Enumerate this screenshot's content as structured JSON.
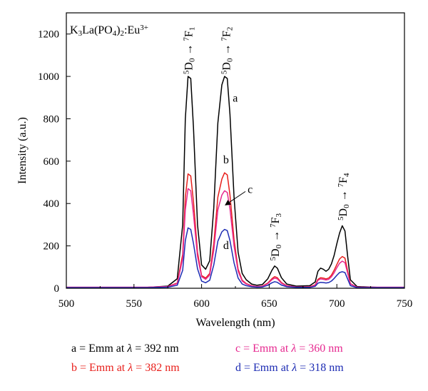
{
  "chart_data": {
    "type": "line",
    "title": "",
    "xlabel": "Wavelength (nm)",
    "ylabel": "Intensity (a.u.)",
    "xlim": [
      500,
      750
    ],
    "ylim": [
      0,
      1300
    ],
    "xticks": [
      500,
      550,
      600,
      650,
      700,
      750
    ],
    "yticks": [
      0,
      200,
      400,
      600,
      800,
      1000,
      1200
    ],
    "grid": false,
    "sample": {
      "base": "K",
      "sub1": "3",
      "mid1": "La(PO",
      "sub2": "4",
      "mid2": ")",
      "sub3": "2",
      "mid3": ":Eu",
      "sup": "3+"
    },
    "peak_labels": [
      {
        "id": "f1",
        "upper": "7",
        "term": "F",
        "sub": "1",
        "x": 590,
        "y": 1010
      },
      {
        "id": "f2",
        "upper": "7",
        "term": "F",
        "sub": "2",
        "x": 618,
        "y": 1010
      },
      {
        "id": "f3",
        "upper": "7",
        "term": "F",
        "sub": "3",
        "x": 654,
        "y": 130
      },
      {
        "id": "f4",
        "upper": "7",
        "term": "F",
        "sub": "4",
        "x": 704,
        "y": 320
      }
    ],
    "transition_prefix": {
      "sup": "5",
      "term": "D",
      "sub": "0",
      "arrow": "→"
    },
    "curve_labels": [
      {
        "text": "a",
        "x": 623,
        "y": 880
      },
      {
        "text": "b",
        "x": 616,
        "y": 590
      },
      {
        "text": "c",
        "x": 634,
        "y": 450
      },
      {
        "text": "d",
        "x": 616,
        "y": 185
      }
    ],
    "series": [
      {
        "name": "a",
        "color": "#000000",
        "x": [
          500,
          560,
          575,
          582,
          586,
          588,
          590,
          592,
          594,
          597,
          600,
          603,
          606,
          609,
          612,
          615,
          617,
          619,
          621,
          624,
          627,
          630,
          633,
          637,
          641,
          645,
          649,
          652,
          654,
          656,
          659,
          663,
          670,
          680,
          684,
          686,
          688,
          690,
          692,
          694,
          696,
          698,
          700,
          702,
          704,
          706,
          708,
          710,
          715,
          730,
          750
        ],
        "y": [
          3,
          4,
          10,
          45,
          300,
          800,
          1000,
          990,
          760,
          300,
          110,
          90,
          130,
          380,
          780,
          960,
          1000,
          990,
          820,
          430,
          170,
          70,
          40,
          20,
          14,
          18,
          45,
          85,
          105,
          95,
          50,
          20,
          10,
          12,
          30,
          80,
          95,
          90,
          80,
          90,
          115,
          155,
          210,
          260,
          295,
          270,
          150,
          40,
          8,
          4,
          4
        ]
      },
      {
        "name": "b",
        "color": "#e8201c",
        "x": [
          500,
          560,
          575,
          582,
          586,
          588,
          590,
          592,
          594,
          597,
          600,
          603,
          606,
          609,
          612,
          615,
          617,
          619,
          621,
          624,
          627,
          630,
          633,
          637,
          641,
          645,
          649,
          652,
          654,
          656,
          659,
          663,
          670,
          680,
          684,
          686,
          688,
          690,
          692,
          694,
          696,
          698,
          700,
          702,
          704,
          706,
          708,
          710,
          715,
          730,
          750
        ],
        "y": [
          4,
          4,
          8,
          25,
          160,
          430,
          540,
          530,
          410,
          170,
          60,
          48,
          70,
          210,
          430,
          515,
          545,
          535,
          440,
          230,
          90,
          38,
          22,
          12,
          8,
          10,
          25,
          45,
          55,
          50,
          27,
          12,
          6,
          7,
          16,
          42,
          50,
          48,
          44,
          48,
          62,
          85,
          112,
          138,
          150,
          142,
          80,
          22,
          5,
          4,
          4
        ]
      },
      {
        "name": "c",
        "color": "#e6278f",
        "x": [
          500,
          560,
          575,
          582,
          586,
          588,
          590,
          592,
          594,
          597,
          600,
          603,
          606,
          609,
          612,
          615,
          617,
          619,
          621,
          624,
          627,
          630,
          633,
          637,
          641,
          645,
          649,
          652,
          654,
          656,
          659,
          663,
          670,
          680,
          684,
          686,
          688,
          690,
          692,
          694,
          696,
          698,
          700,
          702,
          704,
          706,
          708,
          710,
          715,
          730,
          750
        ],
        "y": [
          5,
          5,
          8,
          22,
          140,
          370,
          470,
          460,
          350,
          150,
          55,
          42,
          62,
          180,
          370,
          440,
          460,
          452,
          375,
          200,
          80,
          34,
          20,
          11,
          8,
          9,
          22,
          40,
          48,
          44,
          24,
          11,
          6,
          6,
          14,
          37,
          44,
          42,
          39,
          42,
          54,
          73,
          97,
          118,
          128,
          121,
          70,
          20,
          5,
          5,
          5
        ]
      },
      {
        "name": "d",
        "color": "#1c2bb3",
        "x": [
          500,
          560,
          575,
          582,
          586,
          588,
          590,
          592,
          594,
          597,
          600,
          603,
          606,
          609,
          612,
          615,
          617,
          619,
          621,
          624,
          627,
          630,
          633,
          637,
          641,
          645,
          649,
          652,
          654,
          656,
          659,
          663,
          670,
          680,
          684,
          686,
          688,
          690,
          692,
          694,
          696,
          698,
          700,
          702,
          704,
          706,
          708,
          710,
          715,
          730,
          750
        ],
        "y": [
          3,
          3,
          5,
          14,
          85,
          225,
          285,
          278,
          212,
          92,
          34,
          26,
          38,
          110,
          222,
          266,
          278,
          272,
          225,
          120,
          48,
          20,
          12,
          7,
          5,
          6,
          14,
          26,
          31,
          28,
          15,
          7,
          4,
          4,
          9,
          24,
          28,
          27,
          25,
          27,
          34,
          46,
          61,
          74,
          78,
          74,
          43,
          12,
          3,
          3,
          3
        ]
      }
    ],
    "legend": [
      {
        "key": "a",
        "label": "a = Emm at",
        "lambda": "λ",
        "value": "= 392 nm",
        "color": "#000000"
      },
      {
        "key": "b",
        "label": "b = Emm at",
        "lambda": "λ",
        "value": "= 382 nm",
        "color": "#e8201c"
      },
      {
        "key": "c",
        "label": "c = Emm at",
        "lambda": "λ",
        "value": "= 360 nm",
        "color": "#e6278f"
      },
      {
        "key": "d",
        "label": "d = Emm at",
        "lambda": "λ",
        "value": "= 318 nm",
        "color": "#1c2bb3"
      }
    ]
  }
}
